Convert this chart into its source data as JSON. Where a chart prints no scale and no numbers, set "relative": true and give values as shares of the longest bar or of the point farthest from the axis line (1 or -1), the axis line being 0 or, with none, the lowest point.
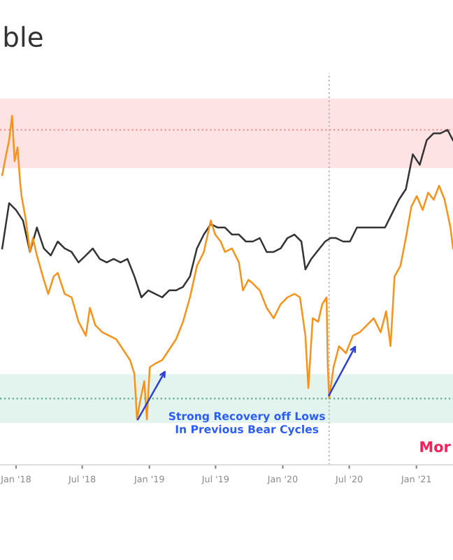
{
  "chart_data": {
    "type": "line",
    "title": "ble",
    "relative": true,
    "tick_labels": "x",
    "xlim": [
      "2017-11-18",
      "2021-04-11"
    ],
    "xticks": [
      {
        "value": "2018-01-01",
        "label": "Jan '18"
      },
      {
        "value": "2018-07-01",
        "label": "Jul '18"
      },
      {
        "value": "2019-01-01",
        "label": "Jan '19"
      },
      {
        "value": "2019-07-01",
        "label": "Jul '19"
      },
      {
        "value": "2020-01-01",
        "label": "Jan '20"
      },
      {
        "value": "2020-07-01",
        "label": "Jul '20"
      },
      {
        "value": "2021-01-01",
        "label": "Jan '21"
      }
    ],
    "series": [
      {
        "color": "#333333",
        "x": [
          "2017-11-24",
          "2017-12-13",
          "2018-01-01",
          "2018-01-20",
          "2018-02-08",
          "2018-02-27",
          "2018-03-18",
          "2018-04-06",
          "2018-04-25",
          "2018-05-14",
          "2018-06-02",
          "2018-06-21",
          "2018-07-11",
          "2018-07-30",
          "2018-08-18",
          "2018-09-06",
          "2018-09-25",
          "2018-10-14",
          "2018-11-02",
          "2018-11-21",
          "2018-12-10",
          "2018-12-29",
          "2019-01-17",
          "2019-02-05",
          "2019-02-24",
          "2019-03-15",
          "2019-04-03",
          "2019-04-22",
          "2019-05-11",
          "2019-05-30",
          "2019-06-18",
          "2019-07-07",
          "2019-07-27",
          "2019-08-15",
          "2019-09-03",
          "2019-09-22",
          "2019-10-11",
          "2019-10-30",
          "2019-11-18",
          "2019-12-07",
          "2019-12-26",
          "2020-01-14",
          "2020-02-02",
          "2020-02-21",
          "2020-03-03",
          "2020-03-19",
          "2020-04-03",
          "2020-04-26",
          "2020-05-11",
          "2020-05-26",
          "2020-06-14",
          "2020-07-03",
          "2020-07-22",
          "2020-08-11",
          "2020-08-30",
          "2020-09-18",
          "2020-10-07",
          "2020-10-26",
          "2020-11-14",
          "2020-12-03",
          "2020-12-22",
          "2021-01-10",
          "2021-01-29",
          "2021-02-17",
          "2021-03-08",
          "2021-03-27",
          "2021-04-11"
        ],
        "values": [
          0.62,
          0.75,
          0.73,
          0.7,
          0.61,
          0.68,
          0.62,
          0.6,
          0.64,
          0.62,
          0.61,
          0.58,
          0.6,
          0.62,
          0.59,
          0.58,
          0.59,
          0.58,
          0.59,
          0.54,
          0.48,
          0.5,
          0.49,
          0.48,
          0.5,
          0.5,
          0.51,
          0.54,
          0.62,
          0.66,
          0.69,
          0.68,
          0.68,
          0.66,
          0.66,
          0.64,
          0.64,
          0.65,
          0.61,
          0.61,
          0.62,
          0.65,
          0.66,
          0.64,
          0.56,
          0.59,
          0.61,
          0.64,
          0.65,
          0.65,
          0.64,
          0.64,
          0.68,
          0.68,
          0.68,
          0.68,
          0.68,
          0.72,
          0.76,
          0.79,
          0.89,
          0.86,
          0.93,
          0.95,
          0.95,
          0.96,
          0.93
        ]
      },
      {
        "color": "#f7931a",
        "x": [
          "2017-11-24",
          "2017-12-05",
          "2017-12-13",
          "2017-12-21",
          "2017-12-28",
          "2018-01-05",
          "2018-01-12",
          "2018-01-16",
          "2018-01-28",
          "2018-02-08",
          "2018-02-16",
          "2018-02-27",
          "2018-03-18",
          "2018-03-30",
          "2018-04-14",
          "2018-04-25",
          "2018-05-14",
          "2018-06-02",
          "2018-06-21",
          "2018-07-11",
          "2018-07-22",
          "2018-08-06",
          "2018-08-25",
          "2018-09-13",
          "2018-10-02",
          "2018-10-21",
          "2018-11-09",
          "2018-11-21",
          "2018-11-28",
          "2018-12-06",
          "2018-12-18",
          "2018-12-25",
          "2019-01-02",
          "2019-01-17",
          "2019-02-05",
          "2019-02-24",
          "2019-03-15",
          "2019-04-03",
          "2019-04-22",
          "2019-05-11",
          "2019-05-30",
          "2019-06-18",
          "2019-06-30",
          "2019-07-15",
          "2019-07-27",
          "2019-08-15",
          "2019-09-03",
          "2019-09-14",
          "2019-09-29",
          "2019-10-11",
          "2019-10-30",
          "2019-11-18",
          "2019-12-07",
          "2019-12-26",
          "2020-01-14",
          "2020-02-02",
          "2020-02-17",
          "2020-03-03",
          "2020-03-11",
          "2020-03-23",
          "2020-04-07",
          "2020-04-18",
          "2020-04-30",
          "2020-05-03",
          "2020-05-07",
          "2020-05-19",
          "2020-06-03",
          "2020-06-22",
          "2020-07-11",
          "2020-07-30",
          "2020-08-18",
          "2020-09-06",
          "2020-09-25",
          "2020-10-10",
          "2020-10-22",
          "2020-11-02",
          "2020-11-18",
          "2020-12-03",
          "2020-12-18",
          "2021-01-02",
          "2021-01-18",
          "2021-02-02",
          "2021-02-17",
          "2021-03-04",
          "2021-03-19",
          "2021-04-04",
          "2021-04-11"
        ],
        "values": [
          0.83,
          0.89,
          0.93,
          1.0,
          0.87,
          0.91,
          0.81,
          0.77,
          0.7,
          0.61,
          0.65,
          0.6,
          0.53,
          0.49,
          0.54,
          0.55,
          0.49,
          0.48,
          0.41,
          0.37,
          0.45,
          0.4,
          0.38,
          0.37,
          0.36,
          0.33,
          0.3,
          0.26,
          0.13,
          0.18,
          0.24,
          0.13,
          0.28,
          0.29,
          0.3,
          0.33,
          0.36,
          0.41,
          0.48,
          0.57,
          0.61,
          0.7,
          0.66,
          0.64,
          0.61,
          0.62,
          0.58,
          0.5,
          0.53,
          0.52,
          0.5,
          0.45,
          0.42,
          0.46,
          0.48,
          0.49,
          0.48,
          0.37,
          0.22,
          0.42,
          0.41,
          0.46,
          0.48,
          0.29,
          0.19,
          0.28,
          0.34,
          0.32,
          0.37,
          0.38,
          0.4,
          0.42,
          0.38,
          0.44,
          0.34,
          0.54,
          0.57,
          0.65,
          0.74,
          0.77,
          0.73,
          0.78,
          0.76,
          0.8,
          0.76,
          0.68,
          0.62
        ]
      }
    ],
    "bands": [
      {
        "axis": "y",
        "from": 0.85,
        "to": 1.05,
        "color": "#fde3e4"
      },
      {
        "axis": "y",
        "from": 0.12,
        "to": 0.26,
        "color": "#e3f4ee"
      }
    ],
    "ref_lines": [
      {
        "axis": "y",
        "value": 0.96,
        "color": "#f08a8a",
        "line_style": "dotted"
      },
      {
        "axis": "y",
        "value": 0.19,
        "color": "#5fa88a",
        "line_style": "dotted"
      },
      {
        "axis": "x",
        "value": "2020-05-07",
        "color": "#bbbbbb",
        "line_style": "dotted"
      }
    ],
    "annotations": [
      "Strong Recovery off Lows\nIn Previous Bear Cycles",
      "Mor"
    ]
  }
}
